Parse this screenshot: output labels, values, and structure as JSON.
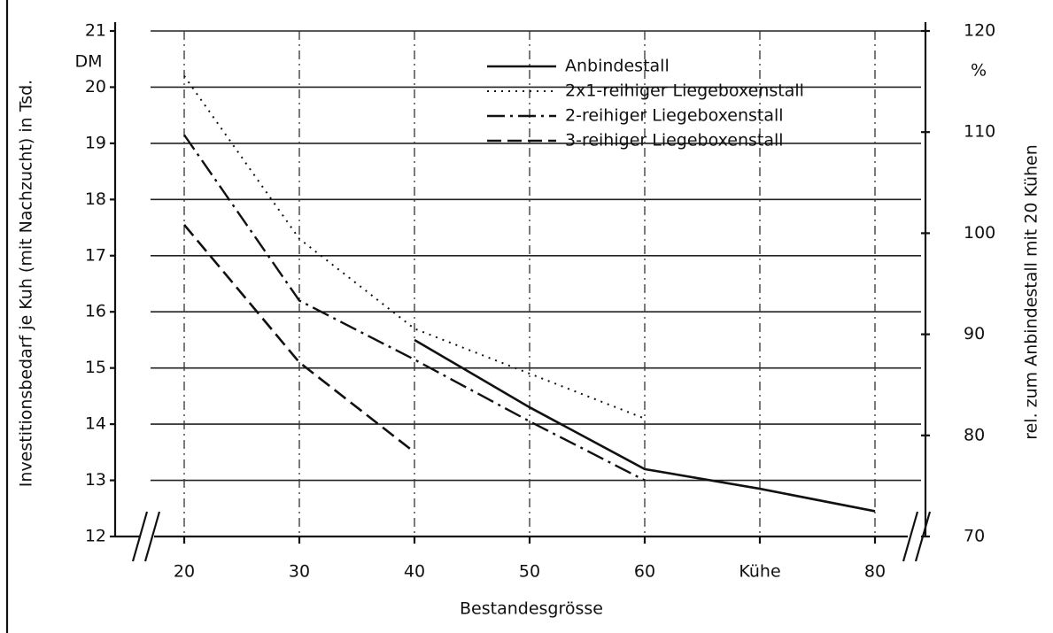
{
  "chart_data": {
    "type": "line",
    "y_label": "Investitionsbedarf je Kuh (mit Nachzucht) in Tsd.",
    "y_unit": "DM",
    "y2_label": "rel. zum Anbindestall mit 20 Kühen",
    "y2_unit": "%",
    "x_label": "Bestandesgrösse",
    "x": [
      20,
      30,
      40,
      50,
      60,
      70,
      80
    ],
    "series": [
      {
        "name": "Anbindestall",
        "color": "#111111",
        "style": "solid",
        "values": [
          null,
          null,
          15.5,
          14.3,
          13.2,
          12.85,
          12.45
        ]
      },
      {
        "name": "2x1-reihiger Liegeboxenstall",
        "color": "#111111",
        "style": "dotted",
        "values": [
          20.2,
          17.3,
          15.7,
          14.9,
          14.1,
          null,
          null
        ]
      },
      {
        "name": "2-reihiger Liegeboxenstall",
        "color": "#111111",
        "style": "dashdot",
        "values": [
          19.15,
          16.2,
          15.15,
          14.05,
          13.0,
          null,
          null
        ]
      },
      {
        "name": "3-reihiger Liegeboxenstall",
        "color": "#111111",
        "style": "dashed",
        "values": [
          17.55,
          15.1,
          13.5,
          null,
          null,
          null,
          null
        ]
      }
    ],
    "xlim": [
      14,
      84
    ],
    "xticks": [
      20,
      30,
      40,
      50,
      60,
      {
        "value": 70,
        "label": "Kühe"
      },
      80
    ],
    "ylim": [
      12,
      21
    ],
    "yticks": [
      12,
      13,
      14,
      15,
      16,
      17,
      18,
      19,
      20,
      21
    ],
    "y2lim": [
      70,
      120
    ],
    "y2ticks": [
      70,
      80,
      90,
      100,
      110,
      120
    ],
    "grid": true
  }
}
